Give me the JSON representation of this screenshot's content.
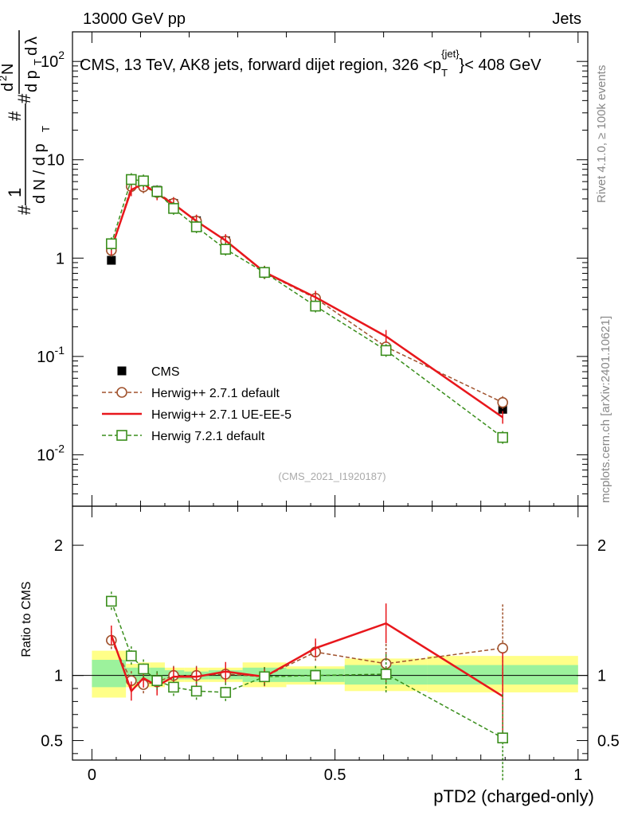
{
  "header": {
    "left": "13000 GeV pp",
    "right": "Jets"
  },
  "side_labels": {
    "rivet": "Rivet 4.1.0, ≥ 100k events",
    "mcplots": "mcplots.cern.ch [arXiv:2401.10621]"
  },
  "chart_data": [
    {
      "type": "line",
      "panel": "main",
      "title": "CMS, 13 TeV, AK8 jets, forward dijet region, 326 <p_T^{jet}< 408 GeV",
      "title_parts": {
        "main": "CMS, 13 TeV, AK8 jets, forward dijet region, 326 <p",
        "sub": "T",
        "sup": "{jet}",
        "tail": "}< 408 GeV"
      },
      "watermark": "(CMS_2021_I1920187)",
      "yscale": "log",
      "xlim": [
        -0.04,
        1.02
      ],
      "ylim": [
        0.003,
        200
      ],
      "ylabel": "# 1/(dN/dp_T) # d²N/(dp_T dλ)",
      "ytick_labels": [
        "10^-2",
        "10^-1",
        "1",
        "10",
        "10^2"
      ],
      "legend_position": "lower-left",
      "x": [
        0.04,
        0.081,
        0.106,
        0.134,
        0.168,
        0.215,
        0.275,
        0.355,
        0.46,
        0.605,
        0.845
      ],
      "series": [
        {
          "name": "CMS",
          "color": "#000000",
          "style": "square-filled",
          "values": [
            0.95,
            5.6,
            5.8,
            4.9,
            3.6,
            2.4,
            1.5,
            0.72,
            0.33,
            0.115,
            0.029
          ]
        },
        {
          "name": "Herwig++ 2.7.1 default",
          "color": "#a0522d",
          "style": "circle-open-dashed",
          "values": [
            1.2,
            5.35,
            5.3,
            4.65,
            3.6,
            2.38,
            1.49,
            0.71,
            0.39,
            0.125,
            0.034
          ]
        },
        {
          "name": "Herwig++ 2.7.1 UE-EE-5",
          "color": "#e8171c",
          "style": "line-solid",
          "values": [
            1.25,
            4.95,
            5.7,
            4.5,
            3.55,
            2.38,
            1.51,
            0.72,
            0.4,
            0.16,
            0.024
          ]
        },
        {
          "name": "Herwig 7.2.1 default",
          "color": "#3a8e1c",
          "style": "square-open-dashed",
          "values": [
            1.4,
            6.3,
            6.1,
            4.75,
            3.2,
            2.08,
            1.23,
            0.715,
            0.325,
            0.115,
            0.015
          ]
        }
      ]
    },
    {
      "type": "line",
      "panel": "ratio",
      "ylabel": "Ratio to CMS",
      "xlabel": "pTD2 (charged-only)",
      "xlim": [
        -0.04,
        1.02
      ],
      "ylim": [
        0.35,
        2.3
      ],
      "ytick_labels": [
        "0.5",
        "1",
        "2"
      ],
      "xtick_labels": [
        "0",
        "0.5",
        "1"
      ],
      "x": [
        0.04,
        0.081,
        0.106,
        0.134,
        0.168,
        0.215,
        0.275,
        0.355,
        0.46,
        0.605,
        0.845
      ],
      "band_edges": [
        0,
        0.07,
        0.095,
        0.12,
        0.15,
        0.19,
        0.24,
        0.31,
        0.4,
        0.52,
        0.69,
        1.0
      ],
      "band_inner": [
        [
          0.91,
          1.12
        ],
        [
          0.94,
          1.06
        ],
        [
          0.95,
          1.06
        ],
        [
          0.95,
          1.06
        ],
        [
          0.97,
          1.04
        ],
        [
          0.97,
          1.03
        ],
        [
          0.97,
          1.04
        ],
        [
          0.95,
          1.06
        ],
        [
          0.95,
          1.05
        ],
        [
          0.93,
          1.08
        ],
        [
          0.93,
          1.08
        ]
      ],
      "band_outer": [
        [
          0.83,
          1.19
        ],
        [
          0.91,
          1.09
        ],
        [
          0.91,
          1.1
        ],
        [
          0.91,
          1.1
        ],
        [
          0.95,
          1.06
        ],
        [
          0.95,
          1.06
        ],
        [
          0.95,
          1.06
        ],
        [
          0.91,
          1.1
        ],
        [
          0.93,
          1.07
        ],
        [
          0.88,
          1.13
        ],
        [
          0.87,
          1.15
        ]
      ],
      "series": [
        {
          "name": "Herwig++ 2.7.1 default",
          "color": "#a0522d",
          "style": "circle-open-dashed",
          "values": [
            1.27,
            0.96,
            0.93,
            0.95,
            1.0,
            1.0,
            1.01,
            0.99,
            1.18,
            1.09,
            1.21
          ]
        },
        {
          "name": "Herwig++ 2.7.1 UE-EE-5",
          "color": "#e8171c",
          "style": "line-solid",
          "values": [
            1.31,
            0.88,
            0.98,
            0.92,
            0.99,
            0.99,
            1.03,
            0.99,
            1.21,
            1.4,
            0.84
          ]
        },
        {
          "name": "Herwig 7.2.1 default",
          "color": "#3a8e1c",
          "style": "square-open-dashed",
          "values": [
            1.57,
            1.15,
            1.05,
            0.96,
            0.91,
            0.88,
            0.87,
            0.99,
            1.0,
            1.01,
            0.52
          ]
        }
      ]
    }
  ]
}
